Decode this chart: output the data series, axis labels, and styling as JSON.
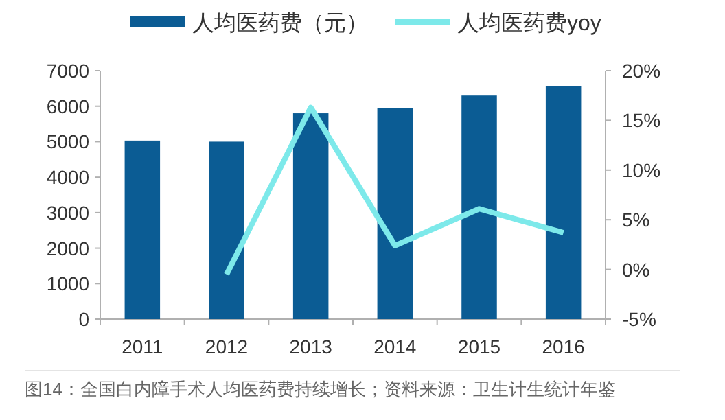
{
  "chart_data": {
    "type": "bar",
    "categories": [
      "2011",
      "2012",
      "2013",
      "2014",
      "2015",
      "2016"
    ],
    "series": [
      {
        "name": "人均医药费（元）",
        "color": "#0b5c94",
        "values": [
          5030,
          5000,
          5800,
          5950,
          6300,
          6560
        ]
      },
      {
        "name": "人均医药费yoy",
        "type": "line",
        "axis": "y2",
        "color": "#7de9ea",
        "values": [
          null,
          -0.5,
          16.3,
          2.4,
          6.1,
          3.7
        ]
      }
    ],
    "ylim": [
      0,
      7000
    ],
    "yticks": [
      0,
      1000,
      2000,
      3000,
      4000,
      5000,
      6000,
      7000
    ],
    "y2lim": [
      -5,
      20
    ],
    "y2ticks": [
      {
        "value": -5,
        "label": "-5%"
      },
      {
        "value": 0,
        "label": "0%"
      },
      {
        "value": 5,
        "label": "5%"
      },
      {
        "value": 10,
        "label": "10%"
      },
      {
        "value": 15,
        "label": "15%"
      },
      {
        "value": 20,
        "label": "20%"
      }
    ],
    "legend": "top",
    "grid": false,
    "marker": "none",
    "annotations": [
      "图14：全国白内障手术人均医药费持续增长；资料来源：卫生计生统计年鉴"
    ]
  }
}
